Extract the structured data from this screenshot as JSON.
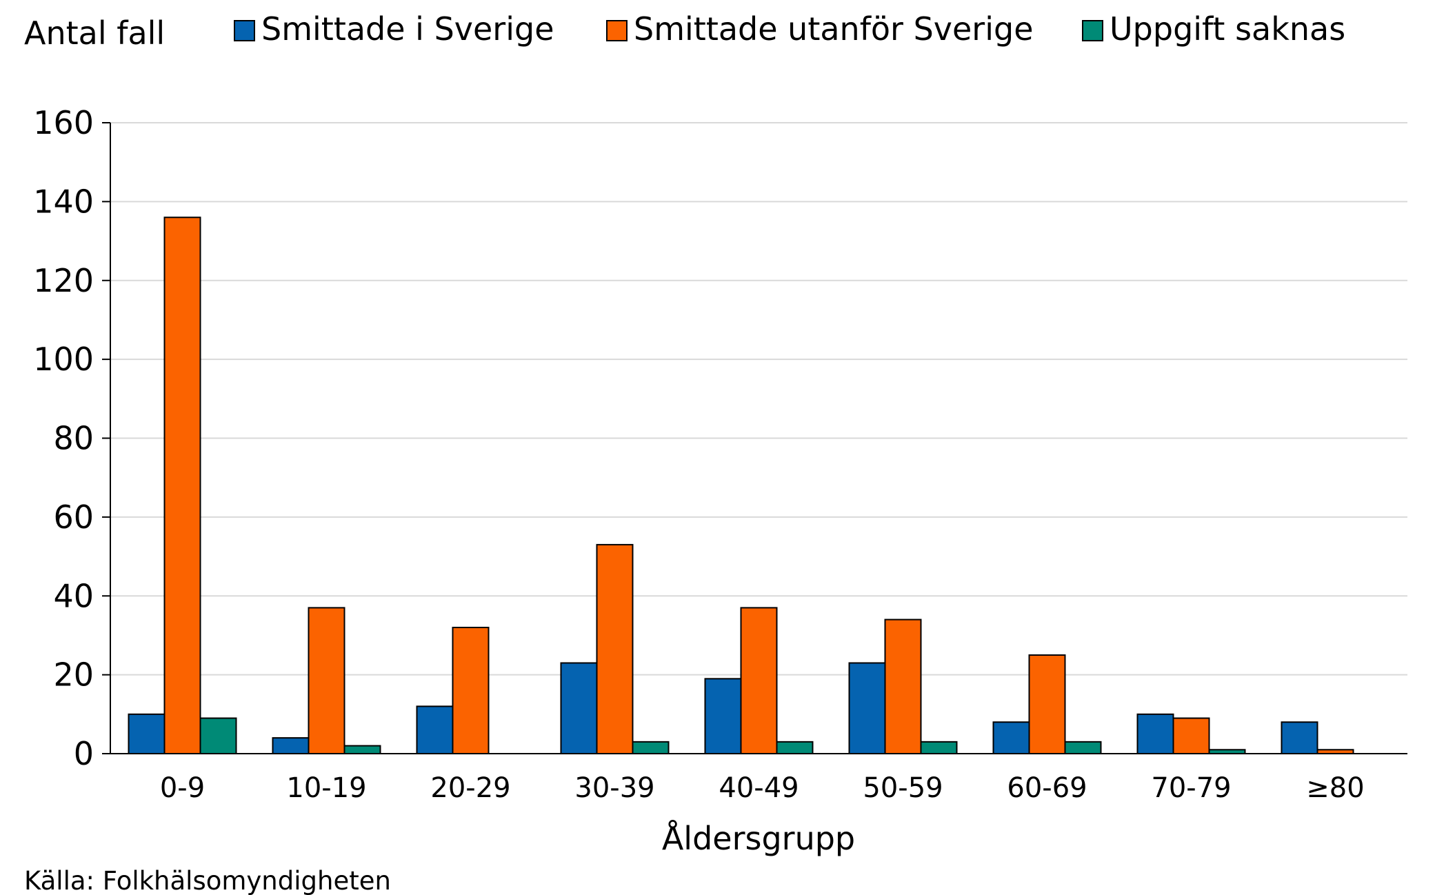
{
  "chart_data": {
    "type": "bar",
    "ylabel": "Antal fall",
    "xlabel": "Åldersgrupp",
    "source": "Källa: Folkhälsomyndigheten",
    "categories": [
      "0-9",
      "10-19",
      "20-29",
      "30-39",
      "40-49",
      "50-59",
      "60-69",
      "70-79",
      "≥80"
    ],
    "ylim": [
      0,
      160
    ],
    "yticks": [
      "0",
      "20",
      "40",
      "60",
      "80",
      "100",
      "120",
      "140",
      "160"
    ],
    "grid": true,
    "legend_position": "top",
    "series": [
      {
        "name": "Smittade i Sverige",
        "color": "#0563b0",
        "values": [
          10,
          4,
          12,
          23,
          19,
          23,
          8,
          10,
          8
        ]
      },
      {
        "name": "Smittade utanför Sverige",
        "color": "#fb6300",
        "values": [
          136,
          37,
          32,
          53,
          37,
          34,
          25,
          9,
          1
        ]
      },
      {
        "name": "Uppgift saknas",
        "color": "#008a76",
        "values": [
          9,
          2,
          0,
          3,
          3,
          3,
          3,
          1,
          0
        ]
      }
    ]
  }
}
